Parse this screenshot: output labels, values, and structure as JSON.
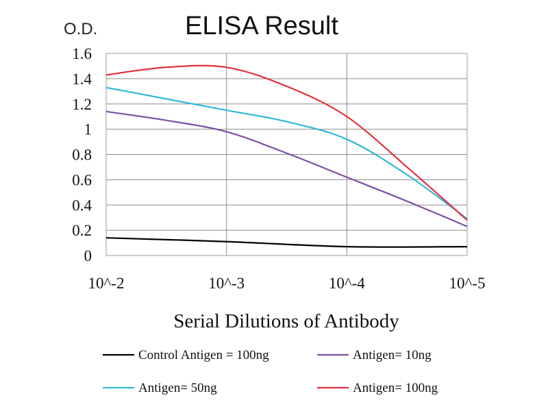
{
  "chart_data": {
    "type": "line",
    "title": "ELISA Result",
    "ylabel": "O.D.",
    "xlabel": "Serial Dilutions of Antibody",
    "categories": [
      "10^-2",
      "10^-3",
      "10^-4",
      "10^-5"
    ],
    "x_scale": "log",
    "ylim": [
      0,
      1.6
    ],
    "yticks": [
      "0",
      "0.2",
      "0.4",
      "0.6",
      "0.8",
      "1",
      "1.2",
      "1.4",
      "1.6"
    ],
    "grid": true,
    "legend_position": "bottom",
    "series": [
      {
        "name": "Control Antigen = 100ng",
        "color": "#000000",
        "x": [
          0,
          1,
          2,
          3
        ],
        "values": [
          0.14,
          0.11,
          0.07,
          0.07
        ]
      },
      {
        "name": "Antigen= 10ng",
        "color": "#7b4fa6",
        "x": [
          0,
          0.5,
          1,
          1.5,
          2,
          2.5,
          3
        ],
        "values": [
          1.14,
          1.07,
          0.98,
          0.81,
          0.62,
          0.43,
          0.23
        ]
      },
      {
        "name": "Antigen= 50ng",
        "color": "#2fb8d6",
        "x": [
          0,
          0.5,
          1,
          1.5,
          2,
          2.5,
          3
        ],
        "values": [
          1.33,
          1.24,
          1.15,
          1.06,
          0.92,
          0.64,
          0.29
        ]
      },
      {
        "name": "Antigen= 100ng",
        "color": "#e0313e",
        "x": [
          0,
          0.5,
          1,
          1.5,
          2,
          2.5,
          3
        ],
        "values": [
          1.43,
          1.49,
          1.49,
          1.34,
          1.1,
          0.7,
          0.28
        ]
      }
    ]
  }
}
